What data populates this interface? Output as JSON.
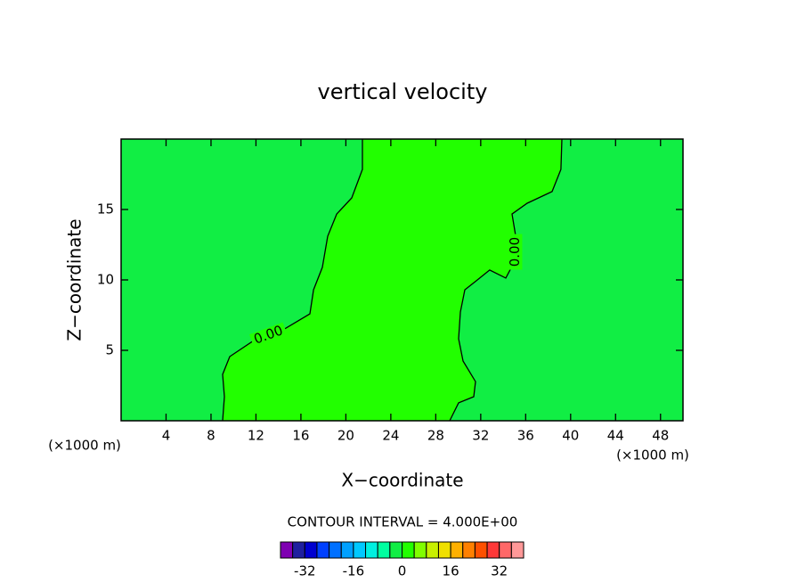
{
  "chart_data": {
    "type": "contour",
    "title": "vertical velocity",
    "x_label": "X−coordinate",
    "y_label": "Z−coordinate",
    "x_unit_left": "(×1000 m)",
    "x_unit_right": "(×1000 m)",
    "xlim": [
      0,
      50
    ],
    "ylim": [
      0,
      20
    ],
    "xticks": [
      4,
      8,
      12,
      16,
      20,
      24,
      28,
      32,
      36,
      40,
      44,
      48
    ],
    "yticks": [
      5,
      10,
      15
    ],
    "contours": [
      {
        "level": 0,
        "label": "0.00",
        "color": "#000000",
        "x": [
          21.47,
          21.47,
          20.52,
          19.18,
          18.38,
          17.91,
          17.12,
          16.8,
          14.42,
          11.81,
          9.67,
          9.03,
          9.19,
          9.03
        ],
        "y": [
          20,
          17.85,
          15.82,
          14.68,
          13.1,
          10.89,
          9.3,
          7.59,
          6.46,
          5.7,
          4.56,
          3.29,
          1.71,
          0
        ]
      },
      {
        "level": 0,
        "label": "0.00",
        "color": "#000000",
        "x": [
          39.22,
          39.14,
          38.35,
          36.13,
          34.79,
          35.18,
          34.94,
          34.23,
          32.8,
          31.62,
          30.59,
          30.19,
          30.03,
          30.43,
          31.54,
          31.38,
          30.03,
          29.24
        ],
        "y": [
          20,
          17.85,
          16.27,
          15.44,
          14.68,
          12.78,
          11.2,
          10.13,
          10.7,
          9.94,
          9.3,
          7.72,
          5.82,
          4.24,
          2.78,
          1.71,
          1.27,
          0
        ]
      }
    ],
    "contour_interval_text": "CONTOUR INTERVAL = 4.000E+00",
    "colorbar": {
      "levels": [
        -40,
        -36,
        -32,
        -28,
        -24,
        -20,
        -16,
        -12,
        -8,
        -4,
        0,
        4,
        8,
        12,
        16,
        20,
        24,
        28,
        32,
        36,
        40
      ],
      "colors": [
        "#7f00b2",
        "#1f1f9f",
        "#0000d0",
        "#0040ff",
        "#0070ff",
        "#00a0ff",
        "#00c8ff",
        "#00f0e0",
        "#00ffa0",
        "#11ee44",
        "#22ff00",
        "#80ff00",
        "#c8f000",
        "#f0e000",
        "#ffb000",
        "#ff8000",
        "#ff5000",
        "#ff3838",
        "#ff6868",
        "#ff9898"
      ],
      "ticks": [
        -32,
        -16,
        0,
        16,
        32
      ]
    }
  }
}
